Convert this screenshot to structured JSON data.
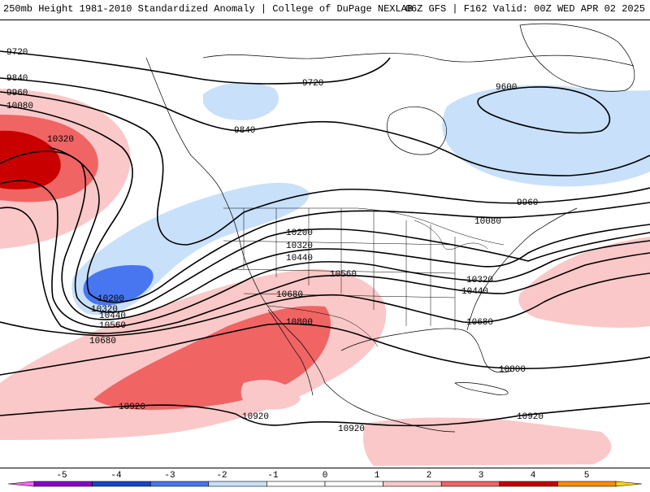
{
  "header": {
    "title_left": "250mb Height 1981-2010 Standardized Anomaly | College of DuPage NEXLAB",
    "title_right": "06Z GFS | F162 Valid: 00Z WED APR 02 2025"
  },
  "colors": {
    "anom_neg5": "#ff66ff",
    "anom_neg4": "#8a00c8",
    "anom_neg3": "#1446c8",
    "anom_neg2": "#4876f0",
    "anom_neg1": "#c8e0fa",
    "anom_0": "#ffffff",
    "anom_pos1": "#fac8c8",
    "anom_pos2": "#f06464",
    "anom_pos3": "#c80000",
    "anom_pos4": "#ff8c00",
    "anom_pos5": "#ffd700",
    "contour": "#000000",
    "coastline": "#000000"
  },
  "contours": {
    "labels": [
      {
        "text": "9720"
      },
      {
        "text": "9840"
      },
      {
        "text": "9960"
      },
      {
        "text": "10080"
      },
      {
        "text": "10320"
      },
      {
        "text": "9720"
      },
      {
        "text": "9840"
      },
      {
        "text": "9600"
      },
      {
        "text": "9960"
      },
      {
        "text": "10080"
      },
      {
        "text": "10200"
      },
      {
        "text": "10320"
      },
      {
        "text": "10440"
      },
      {
        "text": "10560"
      },
      {
        "text": "10680"
      },
      {
        "text": "10800"
      },
      {
        "text": "10320"
      },
      {
        "text": "10440"
      },
      {
        "text": "10680"
      },
      {
        "text": "10800"
      },
      {
        "text": "10200"
      },
      {
        "text": "10320"
      },
      {
        "text": "10440"
      },
      {
        "text": "10560"
      },
      {
        "text": "10680"
      },
      {
        "text": "10920"
      },
      {
        "text": "10920"
      },
      {
        "text": "10920"
      },
      {
        "text": "10920"
      }
    ]
  },
  "colorbar": {
    "ticks": [
      "-5",
      "-4",
      "-3",
      "-2",
      "-1",
      "0",
      "1",
      "2",
      "3",
      "4",
      "5"
    ]
  }
}
